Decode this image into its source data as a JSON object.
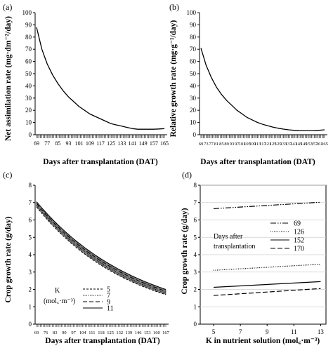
{
  "chart_data": [
    {
      "id": "a",
      "panel_label": "(a)",
      "type": "line",
      "xlabel": "Days after transplantation (DAT)",
      "ylabel": "Net assimilation rate (mg·dm⁻²/day)",
      "ylim": [
        0,
        100
      ],
      "yticks": [
        "0",
        "10",
        "20",
        "30",
        "40",
        "50",
        "60",
        "70",
        "80",
        "90",
        "100"
      ],
      "xlim": [
        69,
        165
      ],
      "xticks": [
        "69",
        "77",
        "85",
        "93",
        "101",
        "109",
        "117",
        "125",
        "133",
        "141",
        "149",
        "157",
        "165"
      ],
      "series": [
        {
          "x": [
            69,
            73,
            77,
            81,
            85,
            89,
            93,
            97,
            101,
            105,
            109,
            113,
            117,
            121,
            125,
            129,
            133,
            137,
            141,
            145,
            149,
            153,
            157,
            161,
            165
          ],
          "y": [
            88,
            70,
            58,
            49,
            42,
            36,
            31,
            27,
            23,
            20,
            17,
            15,
            13,
            11,
            9,
            8,
            7,
            6,
            5,
            4.5,
            4.5,
            4.5,
            4.5,
            4.7,
            5
          ]
        }
      ]
    },
    {
      "id": "b",
      "panel_label": "(b)",
      "type": "line",
      "xlabel": "Days after transplantation (DAT)",
      "ylabel": "Relative growth rate (mg·g⁻¹/day)",
      "ylim": [
        0,
        100
      ],
      "yticks": [
        "0",
        "10",
        "20",
        "30",
        "40",
        "50",
        "60",
        "70",
        "80",
        "90",
        "100"
      ],
      "xlim": [
        69,
        165
      ],
      "xticks": [
        "69",
        "73",
        "77",
        "81",
        "85",
        "89",
        "93",
        "97",
        "101",
        "105",
        "109",
        "113",
        "117",
        "121",
        "125",
        "129",
        "133",
        "137",
        "141",
        "145",
        "149",
        "153",
        "157",
        "161",
        "165"
      ],
      "series": [
        {
          "x": [
            69,
            73,
            77,
            81,
            85,
            89,
            93,
            97,
            101,
            105,
            109,
            113,
            117,
            121,
            125,
            129,
            133,
            137,
            141,
            145,
            149,
            153,
            157,
            161,
            165
          ],
          "y": [
            71,
            57,
            47,
            39,
            33,
            28,
            24,
            20,
            17,
            14,
            12,
            10,
            8.5,
            7.3,
            6.2,
            5.3,
            4.6,
            4,
            3.6,
            3.3,
            3.2,
            3.2,
            3.3,
            3.6,
            4
          ]
        }
      ]
    },
    {
      "id": "c",
      "panel_label": "(c)",
      "type": "line",
      "xlabel": "Days after transplantation (DAT)",
      "ylabel": "Crop growth rate  (g/day)",
      "ylim": [
        0,
        8
      ],
      "yticks": [
        "0",
        "1",
        "2",
        "3",
        "4",
        "5",
        "6",
        "7",
        "8"
      ],
      "xlim": [
        69,
        167
      ],
      "xticks": [
        "69",
        "76",
        "83",
        "90",
        "97",
        "104",
        "111",
        "118",
        "125",
        "132",
        "139",
        "146",
        "153",
        "160",
        "167"
      ],
      "xticks_shown": [
        "69",
        "76",
        "83",
        "90",
        "97",
        "104",
        "111",
        "118",
        "125",
        "132",
        "139",
        "146",
        "153",
        "160",
        "167"
      ],
      "legend_title": "K",
      "legend_unit": "(mol꜀·m⁻³)",
      "legend_position": "bottom-left",
      "series": [
        {
          "name": "5",
          "dash": "3,2",
          "start": 6.75,
          "end": 1.7
        },
        {
          "name": "7",
          "dash": "1,1.5",
          "start": 6.85,
          "end": 1.8
        },
        {
          "name": "9",
          "dash": "6,3",
          "start": 6.95,
          "end": 1.9
        },
        {
          "name": "11",
          "dash": "",
          "start": 7.05,
          "end": 2.0
        }
      ]
    },
    {
      "id": "d",
      "panel_label": "(d)",
      "type": "line",
      "xlabel": "K in nutrient solution (mol꜀·m⁻³)",
      "ylabel": "Crop growth rate (g/day)",
      "ylim": [
        0,
        8
      ],
      "yticks": [
        "0",
        "1",
        "2",
        "3",
        "4",
        "5",
        "6",
        "7",
        "8"
      ],
      "xlim": [
        4,
        13.4
      ],
      "xticks": [
        "5",
        "7",
        "9",
        "11",
        "13"
      ],
      "legend_title_line1": "Days after",
      "legend_title_line2": "transplantation",
      "legend_position": "middle-left",
      "series": [
        {
          "name": "69",
          "dash": "8,2,1.5,2,1.5,2",
          "x": [
            5,
            13
          ],
          "y": [
            6.65,
            7.02
          ]
        },
        {
          "name": "126",
          "dash": "1,1.5",
          "x": [
            5,
            13
          ],
          "y": [
            3.1,
            3.45
          ]
        },
        {
          "name": "152",
          "dash": "",
          "x": [
            5,
            13
          ],
          "y": [
            2.12,
            2.45
          ]
        },
        {
          "name": "170",
          "dash": "7,3",
          "x": [
            5,
            13
          ],
          "y": [
            1.65,
            2.05
          ]
        }
      ]
    }
  ]
}
